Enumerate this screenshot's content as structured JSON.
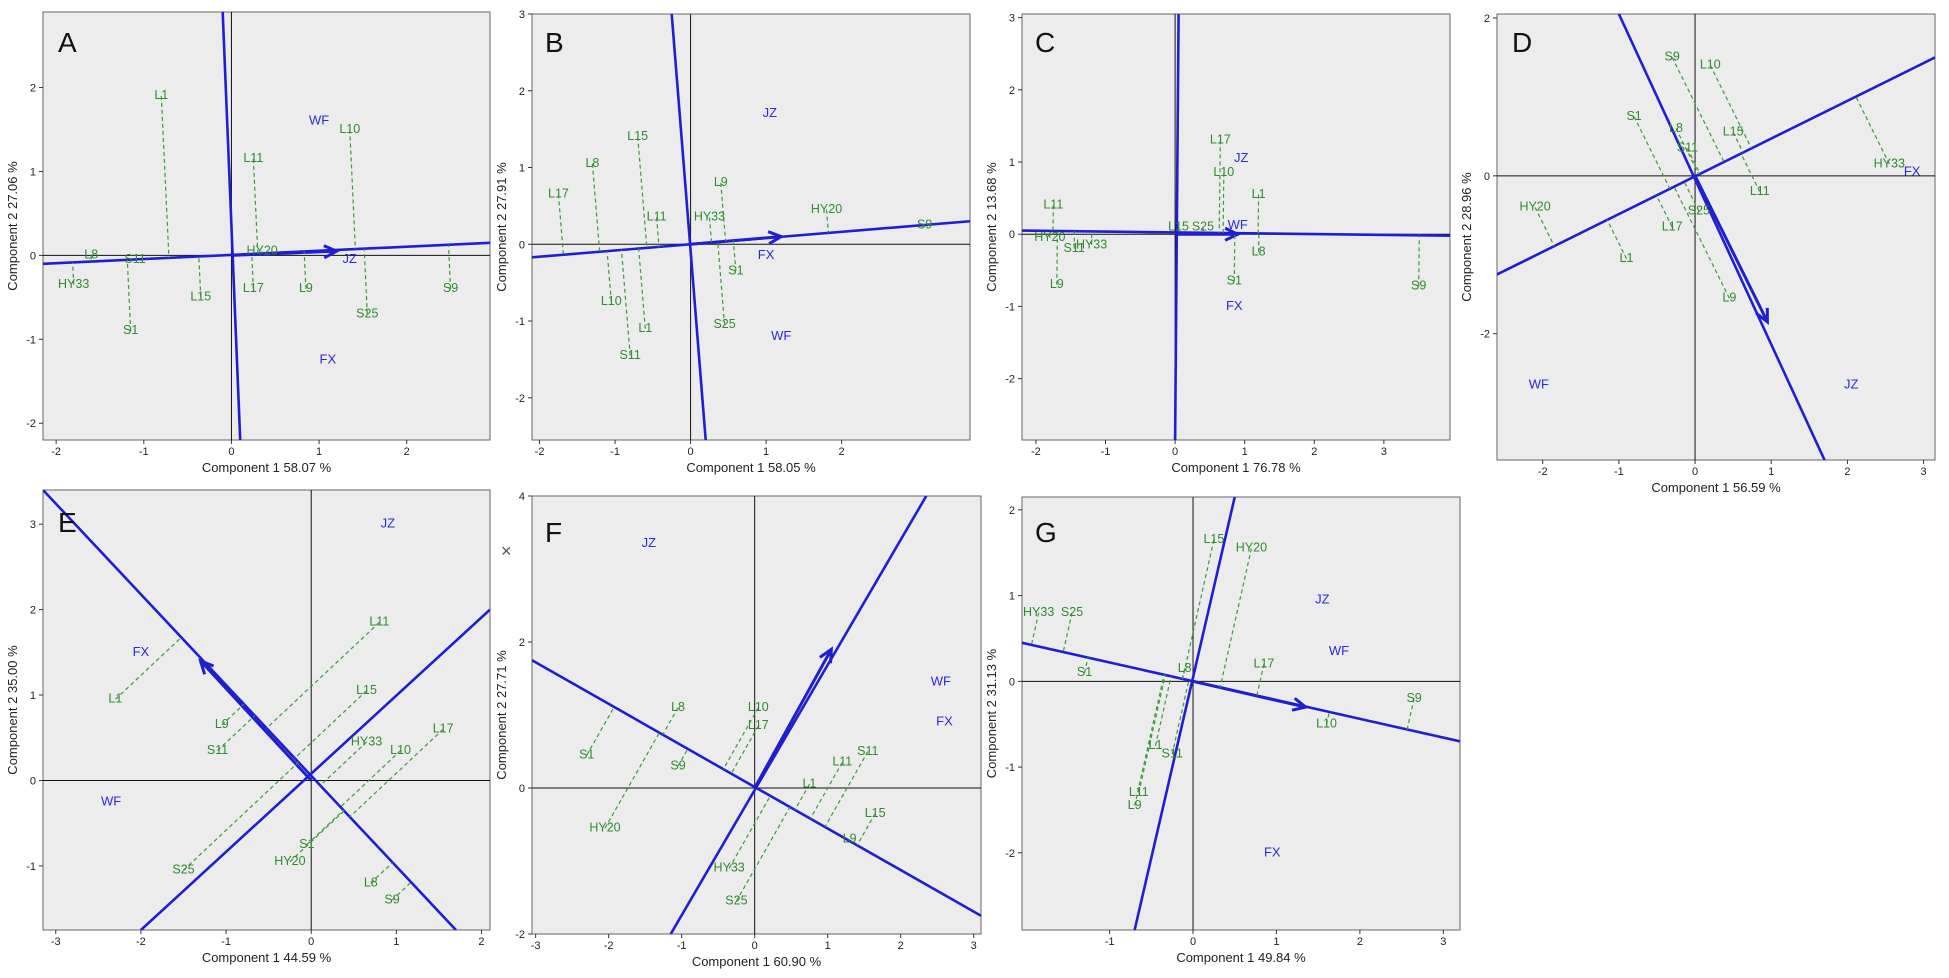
{
  "chart_data": [
    {
      "type": "scatter",
      "panel": "A",
      "xlabel": "Component 1 58.07 %",
      "ylabel": "Component 2 27.06 %",
      "xlim": [
        -2.15,
        2.95
      ],
      "ylim": [
        -2.2,
        2.9
      ],
      "xticks": [
        -2,
        -1,
        0,
        1,
        2
      ],
      "yticks": [
        -2,
        -1,
        0,
        1,
        2
      ],
      "genotypes": [
        {
          "name": "L1",
          "x": -0.8,
          "y": 1.9
        },
        {
          "name": "L8",
          "x": -1.6,
          "y": 0.0
        },
        {
          "name": "S11",
          "x": -1.1,
          "y": -0.05
        },
        {
          "name": "HY33",
          "x": -1.8,
          "y": -0.35
        },
        {
          "name": "S1",
          "x": -1.15,
          "y": -0.9
        },
        {
          "name": "L15",
          "x": -0.35,
          "y": -0.5
        },
        {
          "name": "L11",
          "x": 0.25,
          "y": 1.15
        },
        {
          "name": "L17",
          "x": 0.25,
          "y": -0.4
        },
        {
          "name": "HY20",
          "x": 0.35,
          "y": 0.05
        },
        {
          "name": "L9",
          "x": 0.85,
          "y": -0.4
        },
        {
          "name": "L10",
          "x": 1.35,
          "y": 1.5
        },
        {
          "name": "S25",
          "x": 1.55,
          "y": -0.7
        },
        {
          "name": "S9",
          "x": 2.5,
          "y": -0.4
        }
      ],
      "environments": [
        {
          "name": "WF",
          "x": 1.0,
          "y": 1.6
        },
        {
          "name": "JZ",
          "x": 1.35,
          "y": -0.05
        },
        {
          "name": "FX",
          "x": 1.1,
          "y": -1.25
        }
      ]
    },
    {
      "type": "scatter",
      "panel": "B",
      "xlabel": "Component 1 58.05 %",
      "ylabel": "Component 2 27.91 %",
      "xlim": [
        -2.1,
        3.7
      ],
      "ylim": [
        -2.55,
        3.0
      ],
      "xticks": [
        -2,
        -1,
        0,
        1,
        2
      ],
      "yticks": [
        -2,
        -1,
        0,
        1,
        2,
        3
      ],
      "genotypes": [
        {
          "name": "L15",
          "x": -0.7,
          "y": 1.4
        },
        {
          "name": "L8",
          "x": -1.3,
          "y": 1.05
        },
        {
          "name": "L17",
          "x": -1.75,
          "y": 0.65
        },
        {
          "name": "L11",
          "x": -0.45,
          "y": 0.35
        },
        {
          "name": "L9",
          "x": 0.4,
          "y": 0.8
        },
        {
          "name": "HY33",
          "x": 0.25,
          "y": 0.35
        },
        {
          "name": "HY20",
          "x": 1.8,
          "y": 0.45
        },
        {
          "name": "S9",
          "x": 3.1,
          "y": 0.25
        },
        {
          "name": "L10",
          "x": -1.05,
          "y": -0.75
        },
        {
          "name": "L1",
          "x": -0.6,
          "y": -1.1
        },
        {
          "name": "S11",
          "x": -0.8,
          "y": -1.45
        },
        {
          "name": "S1",
          "x": 0.6,
          "y": -0.35
        },
        {
          "name": "S25",
          "x": 0.45,
          "y": -1.05
        }
      ],
      "environments": [
        {
          "name": "JZ",
          "x": 1.05,
          "y": 1.7
        },
        {
          "name": "FX",
          "x": 1.0,
          "y": -0.15
        },
        {
          "name": "WF",
          "x": 1.2,
          "y": -1.2
        }
      ]
    },
    {
      "type": "scatter",
      "panel": "C",
      "xlabel": "Component 1 76.78 %",
      "ylabel": "Component 2 13.68 %",
      "xlim": [
        -2.2,
        3.95
      ],
      "ylim": [
        -2.85,
        3.05
      ],
      "xticks": [
        -2,
        -1,
        0,
        1,
        2,
        3
      ],
      "yticks": [
        -2,
        -1,
        0,
        1,
        2,
        3
      ],
      "genotypes": [
        {
          "name": "L17",
          "x": 0.65,
          "y": 1.3
        },
        {
          "name": "L10",
          "x": 0.7,
          "y": 0.85
        },
        {
          "name": "L11",
          "x": -1.75,
          "y": 0.4
        },
        {
          "name": "L1",
          "x": 1.2,
          "y": 0.55
        },
        {
          "name": "HY20",
          "x": -1.8,
          "y": -0.05
        },
        {
          "name": "S11",
          "x": -1.45,
          "y": -0.2
        },
        {
          "name": "HY33",
          "x": -1.2,
          "y": -0.15
        },
        {
          "name": "L15",
          "x": 0.05,
          "y": 0.1
        },
        {
          "name": "S25",
          "x": 0.4,
          "y": 0.1
        },
        {
          "name": "L9",
          "x": -1.7,
          "y": -0.7
        },
        {
          "name": "L8",
          "x": 1.2,
          "y": -0.25
        },
        {
          "name": "S1",
          "x": 0.85,
          "y": -0.65
        },
        {
          "name": "S9",
          "x": 3.5,
          "y": -0.72
        }
      ],
      "environments": [
        {
          "name": "JZ",
          "x": 0.95,
          "y": 1.05
        },
        {
          "name": "WF",
          "x": 0.9,
          "y": 0.12
        },
        {
          "name": "FX",
          "x": 0.85,
          "y": -1.0
        }
      ]
    },
    {
      "type": "scatter",
      "panel": "D",
      "xlabel": "Component 1 56.59 %",
      "ylabel": "Component 2 28.96 %",
      "xlim": [
        -2.6,
        3.15
      ],
      "ylim": [
        -3.6,
        2.05
      ],
      "xticks": [
        -2,
        -1,
        0,
        1,
        2,
        3
      ],
      "yticks": [
        -2,
        0,
        2
      ],
      "genotypes": [
        {
          "name": "S9",
          "x": -0.3,
          "y": 1.5
        },
        {
          "name": "L10",
          "x": 0.2,
          "y": 1.4
        },
        {
          "name": "S1",
          "x": -0.8,
          "y": 0.75
        },
        {
          "name": "L8",
          "x": -0.25,
          "y": 0.6
        },
        {
          "name": "S11",
          "x": -0.1,
          "y": 0.35
        },
        {
          "name": "L15",
          "x": 0.5,
          "y": 0.55
        },
        {
          "name": "HY33",
          "x": 2.55,
          "y": 0.15
        },
        {
          "name": "HY20",
          "x": -2.1,
          "y": -0.4
        },
        {
          "name": "L11",
          "x": 0.85,
          "y": -0.2
        },
        {
          "name": "S25",
          "x": 0.05,
          "y": -0.45
        },
        {
          "name": "L17",
          "x": -0.3,
          "y": -0.65
        },
        {
          "name": "L1",
          "x": -0.9,
          "y": -1.05
        },
        {
          "name": "L9",
          "x": 0.45,
          "y": -1.55
        }
      ],
      "environments": [
        {
          "name": "FX",
          "x": 2.85,
          "y": 0.05
        },
        {
          "name": "WF",
          "x": -2.05,
          "y": -2.65
        },
        {
          "name": "JZ",
          "x": 2.05,
          "y": -2.65
        }
      ]
    },
    {
      "type": "scatter",
      "panel": "E",
      "xlabel": "Component 1 44.59 %",
      "ylabel": "Component 2 35.00 %",
      "xlim": [
        -3.15,
        2.1
      ],
      "ylim": [
        -1.75,
        3.4
      ],
      "xticks": [
        -3,
        -2,
        -1,
        0,
        1,
        2
      ],
      "yticks": [
        -1,
        0,
        1,
        2,
        3
      ],
      "genotypes": [
        {
          "name": "L11",
          "x": 0.8,
          "y": 1.85
        },
        {
          "name": "L1",
          "x": -2.3,
          "y": 0.95
        },
        {
          "name": "L15",
          "x": 0.65,
          "y": 1.05
        },
        {
          "name": "L9",
          "x": -1.05,
          "y": 0.65
        },
        {
          "name": "L17",
          "x": 1.55,
          "y": 0.6
        },
        {
          "name": "HY33",
          "x": 0.65,
          "y": 0.45
        },
        {
          "name": "L10",
          "x": 1.05,
          "y": 0.35
        },
        {
          "name": "S11",
          "x": -1.1,
          "y": 0.35
        },
        {
          "name": "S1",
          "x": -0.05,
          "y": -0.75
        },
        {
          "name": "S25",
          "x": -1.5,
          "y": -1.05
        },
        {
          "name": "HY20",
          "x": -0.25,
          "y": -0.95
        },
        {
          "name": "L8",
          "x": 0.7,
          "y": -1.2
        },
        {
          "name": "S9",
          "x": 0.95,
          "y": -1.4
        }
      ],
      "environments": [
        {
          "name": "JZ",
          "x": 0.9,
          "y": 3.0
        },
        {
          "name": "FX",
          "x": -2.0,
          "y": 1.5
        },
        {
          "name": "WF",
          "x": -2.35,
          "y": -0.25
        }
      ]
    },
    {
      "type": "scatter",
      "panel": "F",
      "xlabel": "Component 1 60.90 %",
      "ylabel": "Component 2 27.71 %",
      "xlim": [
        -3.05,
        3.1
      ],
      "ylim": [
        -2.0,
        4.0
      ],
      "xticks": [
        -3,
        -2,
        -1,
        0,
        1,
        2,
        3
      ],
      "yticks": [
        -2,
        0,
        2,
        4
      ],
      "genotypes": [
        {
          "name": "L8",
          "x": -1.05,
          "y": 1.1
        },
        {
          "name": "L10",
          "x": 0.05,
          "y": 1.1
        },
        {
          "name": "L17",
          "x": 0.05,
          "y": 0.85
        },
        {
          "name": "S11",
          "x": 1.55,
          "y": 0.5
        },
        {
          "name": "L11",
          "x": 1.2,
          "y": 0.35
        },
        {
          "name": "S1",
          "x": -2.3,
          "y": 0.45
        },
        {
          "name": "S9",
          "x": -1.05,
          "y": 0.3
        },
        {
          "name": "L1",
          "x": 0.75,
          "y": 0.05
        },
        {
          "name": "L15",
          "x": 1.65,
          "y": -0.35
        },
        {
          "name": "L9",
          "x": 1.3,
          "y": -0.7
        },
        {
          "name": "HY20",
          "x": -2.05,
          "y": -0.55
        },
        {
          "name": "HY33",
          "x": -0.35,
          "y": -1.1
        },
        {
          "name": "S25",
          "x": -0.25,
          "y": -1.55
        }
      ],
      "environments": [
        {
          "name": "JZ",
          "x": -1.45,
          "y": 3.35
        },
        {
          "name": "WF",
          "x": 2.55,
          "y": 1.45
        },
        {
          "name": "FX",
          "x": 2.6,
          "y": 0.9
        }
      ]
    },
    {
      "type": "scatter",
      "panel": "G",
      "xlabel": "Component 1 49.84 %",
      "ylabel": "Component 2 31.13 %",
      "xlim": [
        -2.05,
        3.2
      ],
      "ylim": [
        -2.9,
        2.15
      ],
      "xticks": [
        -1,
        0,
        1,
        2,
        3
      ],
      "yticks": [
        -2,
        -1,
        0,
        1,
        2
      ],
      "genotypes": [
        {
          "name": "L15",
          "x": 0.25,
          "y": 1.65
        },
        {
          "name": "HY20",
          "x": 0.7,
          "y": 1.55
        },
        {
          "name": "HY33",
          "x": -1.85,
          "y": 0.8
        },
        {
          "name": "S25",
          "x": -1.45,
          "y": 0.8
        },
        {
          "name": "L17",
          "x": 0.85,
          "y": 0.2
        },
        {
          "name": "S1",
          "x": -1.3,
          "y": 0.1
        },
        {
          "name": "L8",
          "x": -0.1,
          "y": 0.15
        },
        {
          "name": "S9",
          "x": 2.65,
          "y": -0.2
        },
        {
          "name": "L10",
          "x": 1.6,
          "y": -0.5
        },
        {
          "name": "L1",
          "x": -0.45,
          "y": -0.75
        },
        {
          "name": "S11",
          "x": -0.25,
          "y": -0.85
        },
        {
          "name": "L11",
          "x": -0.65,
          "y": -1.3
        },
        {
          "name": "L9",
          "x": -0.7,
          "y": -1.45
        }
      ],
      "environments": [
        {
          "name": "JZ",
          "x": 1.55,
          "y": 0.95
        },
        {
          "name": "WF",
          "x": 1.75,
          "y": 0.35
        },
        {
          "name": "FX",
          "x": 0.95,
          "y": -2.0
        }
      ]
    }
  ],
  "stray_mark": "×"
}
